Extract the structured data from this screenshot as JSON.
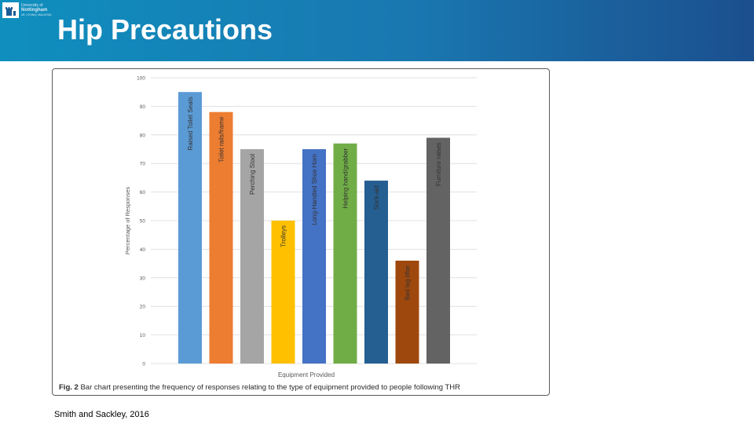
{
  "header": {
    "title": "Hip Precautions",
    "logo_lines": [
      "University of",
      "Nottingham",
      "UK | CHINA | MALAYSIA"
    ],
    "background": "#1a77b0"
  },
  "figure": {
    "caption_label": "Fig. 2",
    "caption_text": "Bar chart presenting the frequency of responses relating to the type of equipment provided to people following THR"
  },
  "citation": "Smith and Sackley, 2016",
  "chart_data": {
    "type": "bar",
    "title": "",
    "xlabel": "Equipment Provided",
    "ylabel": "Percentage of Responses",
    "ylim": [
      0,
      100
    ],
    "yticks": [
      0,
      10,
      20,
      30,
      40,
      50,
      60,
      70,
      80,
      90,
      100
    ],
    "grid": true,
    "categories": [
      "Raised Toilet Seats",
      "Toilet rails/frame",
      "Perching Stool",
      "Trolleys",
      "Long-Handled Shoe Horn",
      "Helping hand/grabber",
      "Sock-aid",
      "Bed leg lifter",
      "Furniture raises"
    ],
    "values": [
      95,
      88,
      75,
      50,
      75,
      77,
      64,
      36,
      79
    ],
    "colors": [
      "#5b9bd5",
      "#ed7d31",
      "#a5a5a5",
      "#ffc000",
      "#4472c4",
      "#70ad47",
      "#255e91",
      "#9e480e",
      "#636363"
    ]
  }
}
